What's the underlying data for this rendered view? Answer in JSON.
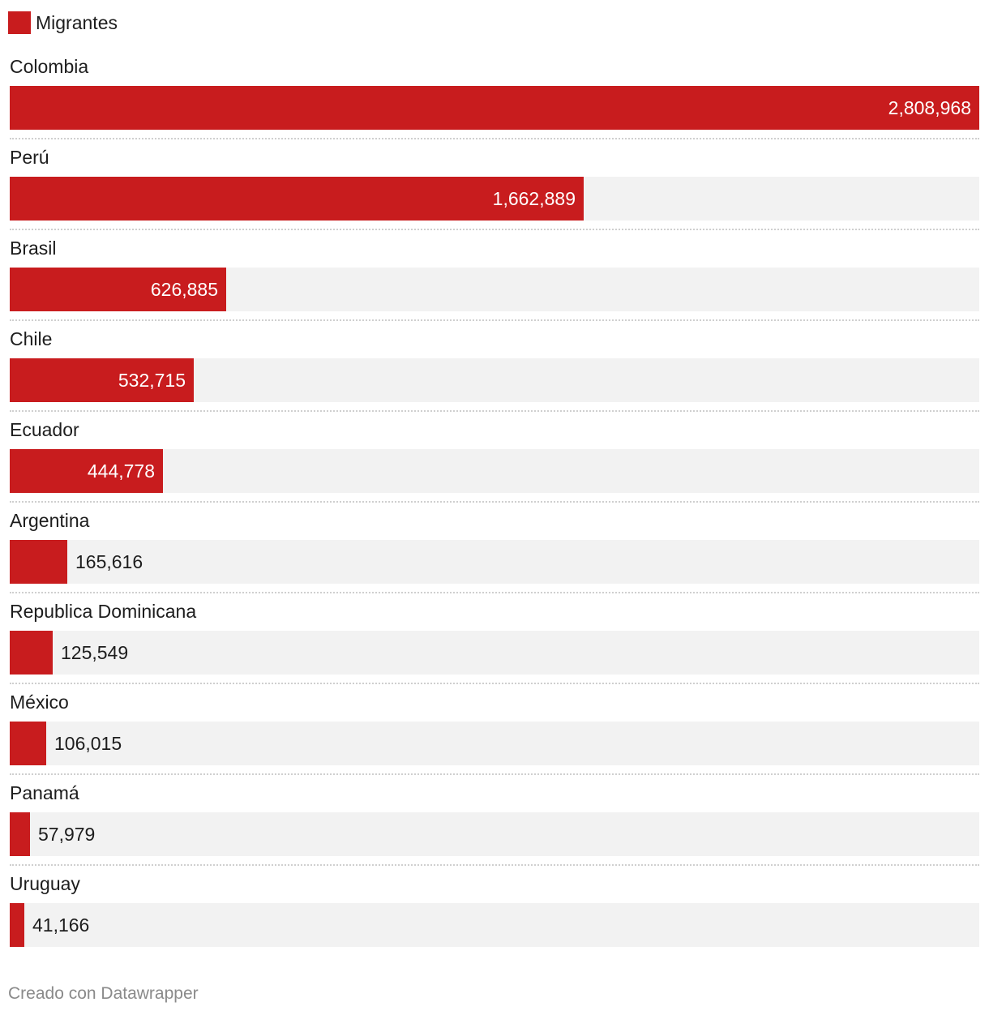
{
  "legend": {
    "label": "Migrantes",
    "color": "#c81c1e"
  },
  "chart_data": {
    "type": "bar",
    "orientation": "horizontal",
    "categories": [
      "Colombia",
      "Perú",
      "Brasil",
      "Chile",
      "Ecuador",
      "Argentina",
      "Republica Dominicana",
      "México",
      "Panamá",
      "Uruguay"
    ],
    "series": [
      {
        "name": "Migrantes",
        "values": [
          2808968,
          1662889,
          626885,
          532715,
          444778,
          165616,
          125549,
          106015,
          57979,
          41166
        ],
        "labels": [
          "2,808,968",
          "1,662,889",
          "626,885",
          "532,715",
          "444,778",
          "165,616",
          "125,549",
          "106,015",
          "57,979",
          "41,166"
        ]
      }
    ],
    "xlim": [
      0,
      2808968
    ],
    "grid": false,
    "legend_position": "top-left",
    "bar_color": "#c81c1e",
    "track_color": "#f2f2f2"
  },
  "footer": {
    "credit": "Creado con Datawrapper"
  }
}
